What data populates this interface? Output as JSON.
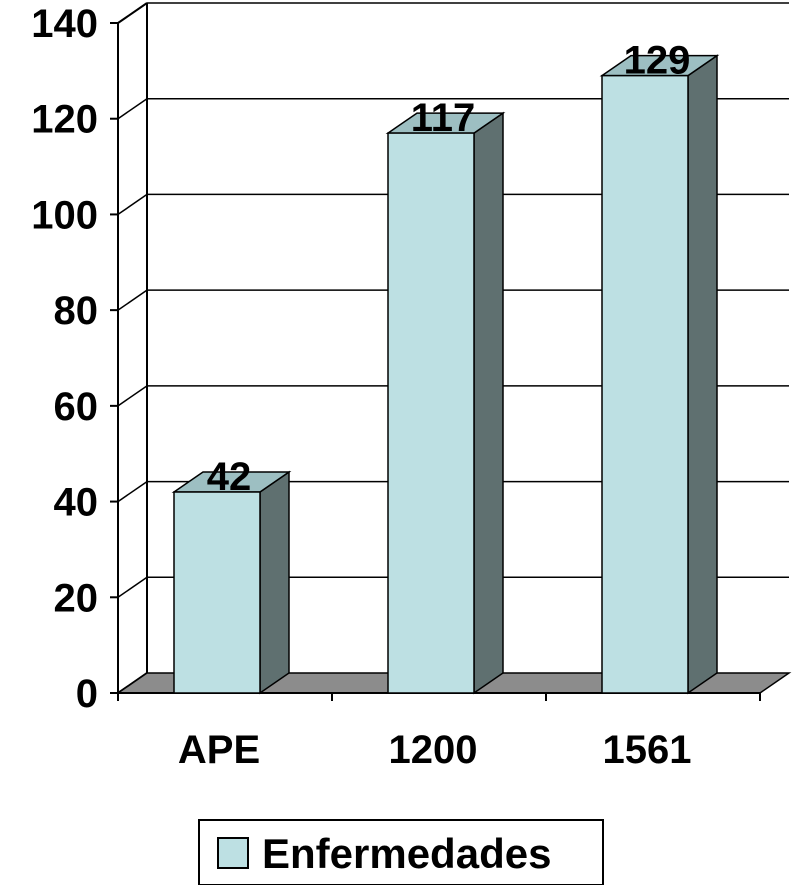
{
  "chart_data": {
    "type": "bar",
    "categories": [
      "APE",
      "1200",
      "1561"
    ],
    "series": [
      {
        "name": "Enfermedades",
        "values": [
          42,
          117,
          129
        ],
        "data_labels": [
          "42",
          "117",
          "129"
        ]
      }
    ],
    "ylim": [
      0,
      140
    ],
    "yticks": [
      "0",
      "20",
      "40",
      "60",
      "80",
      "100",
      "120",
      "140"
    ],
    "grid": true,
    "legend_position": "bottom",
    "three_d": true
  },
  "colors": {
    "bar_front": "#bde0e3",
    "bar_side": "#5f7070",
    "bar_top": "#9dbfc2",
    "floor": "#8c8c8c",
    "grid": "#000000"
  }
}
